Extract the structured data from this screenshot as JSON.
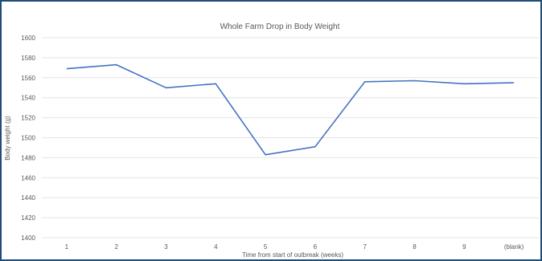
{
  "chart_data": {
    "type": "line",
    "title": "Whole Farm Drop in Body Weight",
    "xlabel": "Time from start of outbreak (weeks)",
    "ylabel": "Body weight (g)",
    "categories": [
      "1",
      "2",
      "3",
      "4",
      "5",
      "6",
      "7",
      "8",
      "9",
      "(blank)"
    ],
    "series": [
      {
        "values": [
          1569,
          1573,
          1550,
          1554,
          1483,
          1491,
          1556,
          1557,
          1554,
          1555
        ]
      }
    ],
    "ylim": [
      1400,
      1600
    ],
    "yticks": [
      1400,
      1420,
      1440,
      1460,
      1480,
      1500,
      1520,
      1540,
      1560,
      1580,
      1600
    ],
    "grid": true,
    "colors": {
      "series": "#4472c4",
      "border": "#1f4e79",
      "grid": "#e4e4e4"
    }
  }
}
